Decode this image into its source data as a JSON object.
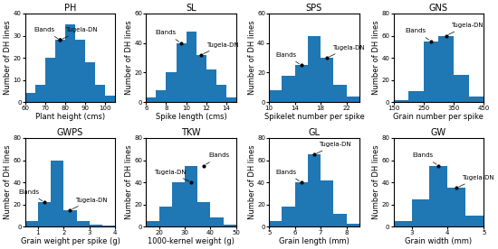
{
  "chart_data": [
    {
      "type": "histogram",
      "title": "PH",
      "x_label": "Plant height (cms)",
      "y_label": "Number of DH lines",
      "bins": [
        60,
        65,
        70,
        75,
        80,
        85,
        90,
        95,
        100,
        105
      ],
      "counts": [
        4,
        8,
        20,
        28,
        35,
        28,
        18,
        8,
        3
      ],
      "xlim": [
        60,
        105
      ],
      "xticks": [
        60,
        70,
        80,
        90,
        100
      ],
      "ylim": [
        0,
        40
      ],
      "yticks": [
        0,
        10,
        20,
        30,
        40
      ],
      "annotations": [
        {
          "text": "Elands",
          "x": 77.5,
          "y": 28
        },
        {
          "text": "Tugela-DN",
          "x": 77.5,
          "y": 28
        }
      ]
    },
    {
      "type": "histogram",
      "title": "SL",
      "x_label": "Spike length (cms)",
      "y_label": "Number of DH lines",
      "bins": [
        6,
        7,
        8,
        9,
        10,
        11,
        12,
        13,
        14,
        15
      ],
      "counts": [
        3,
        8,
        20,
        40,
        48,
        32,
        22,
        12,
        3
      ],
      "xlim": [
        6,
        15
      ],
      "xticks": [
        6,
        8,
        10,
        12,
        14
      ],
      "ylim": [
        0,
        60
      ],
      "yticks": [
        0,
        20,
        40,
        60
      ],
      "annotations": [
        {
          "text": "Elands",
          "x": 9.5,
          "y": 40
        },
        {
          "text": "Tugela-DN",
          "x": 11.5,
          "y": 32
        }
      ]
    },
    {
      "type": "histogram",
      "title": "SPS",
      "x_label": "Spikelet number per spike",
      "y_label": "Number of DH lines",
      "bins": [
        10,
        12,
        14,
        16,
        18,
        20,
        22,
        24
      ],
      "counts": [
        8,
        18,
        25,
        45,
        30,
        12,
        4
      ],
      "xlim": [
        10,
        24
      ],
      "xticks": [
        10,
        14,
        18,
        22
      ],
      "ylim": [
        0,
        60
      ],
      "yticks": [
        0,
        20,
        40,
        60
      ],
      "annotations": [
        {
          "text": "Elands",
          "x": 15,
          "y": 25
        },
        {
          "text": "Tugela-DN",
          "x": 19,
          "y": 30
        }
      ]
    },
    {
      "type": "histogram",
      "title": "GNS",
      "x_label": "Grain number per spike",
      "y_label": "Number of DH lines",
      "bins": [
        150,
        200,
        250,
        300,
        350,
        400,
        450
      ],
      "counts": [
        2,
        10,
        55,
        60,
        25,
        5
      ],
      "xlim": [
        150,
        450
      ],
      "xticks": [
        150,
        250,
        350,
        450
      ],
      "ylim": [
        0,
        80
      ],
      "yticks": [
        0,
        20,
        40,
        60,
        80
      ],
      "annotations": [
        {
          "text": "Elands",
          "x": 275,
          "y": 55
        },
        {
          "text": "Tugela-DN",
          "x": 325,
          "y": 60
        }
      ]
    },
    {
      "type": "histogram",
      "title": "GWPS",
      "x_label": "Grain weight per spike (g)",
      "y_label": "Number of DH lines",
      "bins": [
        0.5,
        1.0,
        1.5,
        2.0,
        2.5,
        3.0,
        3.5,
        4.0
      ],
      "counts": [
        5,
        22,
        60,
        15,
        5,
        2,
        1
      ],
      "xlim": [
        0.5,
        4.0
      ],
      "xticks": [
        1,
        2,
        3,
        4
      ],
      "ylim": [
        0,
        80
      ],
      "yticks": [
        0,
        20,
        40,
        60,
        80
      ],
      "annotations": [
        {
          "text": "Elands",
          "x": 1.25,
          "y": 22
        },
        {
          "text": "Tugela-DN",
          "x": 2.25,
          "y": 15
        }
      ]
    },
    {
      "type": "histogram",
      "title": "TKW",
      "x_label": "1000-kernel weight (g)",
      "y_label": "Number of DH lines",
      "bins": [
        15,
        20,
        25,
        30,
        35,
        40,
        45,
        50
      ],
      "counts": [
        5,
        18,
        40,
        55,
        22,
        8,
        2
      ],
      "xlim": [
        15,
        50
      ],
      "xticks": [
        20,
        30,
        40,
        50
      ],
      "ylim": [
        0,
        80
      ],
      "yticks": [
        0,
        20,
        40,
        60,
        80
      ],
      "annotations": [
        {
          "text": "Tugela-DN",
          "x": 32.5,
          "y": 40
        },
        {
          "text": "Elands",
          "x": 37.5,
          "y": 55
        }
      ]
    },
    {
      "type": "histogram",
      "title": "GL",
      "x_label": "Grain length (mm)",
      "y_label": "Number of DH lines",
      "bins": [
        5.0,
        5.5,
        6.0,
        6.5,
        7.0,
        7.5,
        8.0,
        8.5
      ],
      "counts": [
        5,
        18,
        40,
        65,
        42,
        12,
        3
      ],
      "xlim": [
        5.0,
        8.5
      ],
      "xticks": [
        5,
        6,
        7,
        8
      ],
      "ylim": [
        0,
        80
      ],
      "yticks": [
        0,
        20,
        40,
        60,
        80
      ],
      "annotations": [
        {
          "text": "Elands",
          "x": 6.25,
          "y": 40
        },
        {
          "text": "Tugela-DN",
          "x": 6.75,
          "y": 65
        }
      ]
    },
    {
      "type": "histogram",
      "title": "GW",
      "x_label": "Grain width (mm)",
      "y_label": "Number of DH lines",
      "bins": [
        2.5,
        3.0,
        3.5,
        4.0,
        4.5,
        5.0
      ],
      "counts": [
        5,
        25,
        55,
        35,
        10
      ],
      "xlim": [
        2.5,
        5.0
      ],
      "xticks": [
        3,
        4,
        5
      ],
      "ylim": [
        0,
        80
      ],
      "yticks": [
        0,
        20,
        40,
        60,
        80
      ],
      "annotations": [
        {
          "text": "Elands",
          "x": 3.75,
          "y": 55
        },
        {
          "text": "Tugela-DN",
          "x": 4.25,
          "y": 35
        }
      ]
    }
  ]
}
